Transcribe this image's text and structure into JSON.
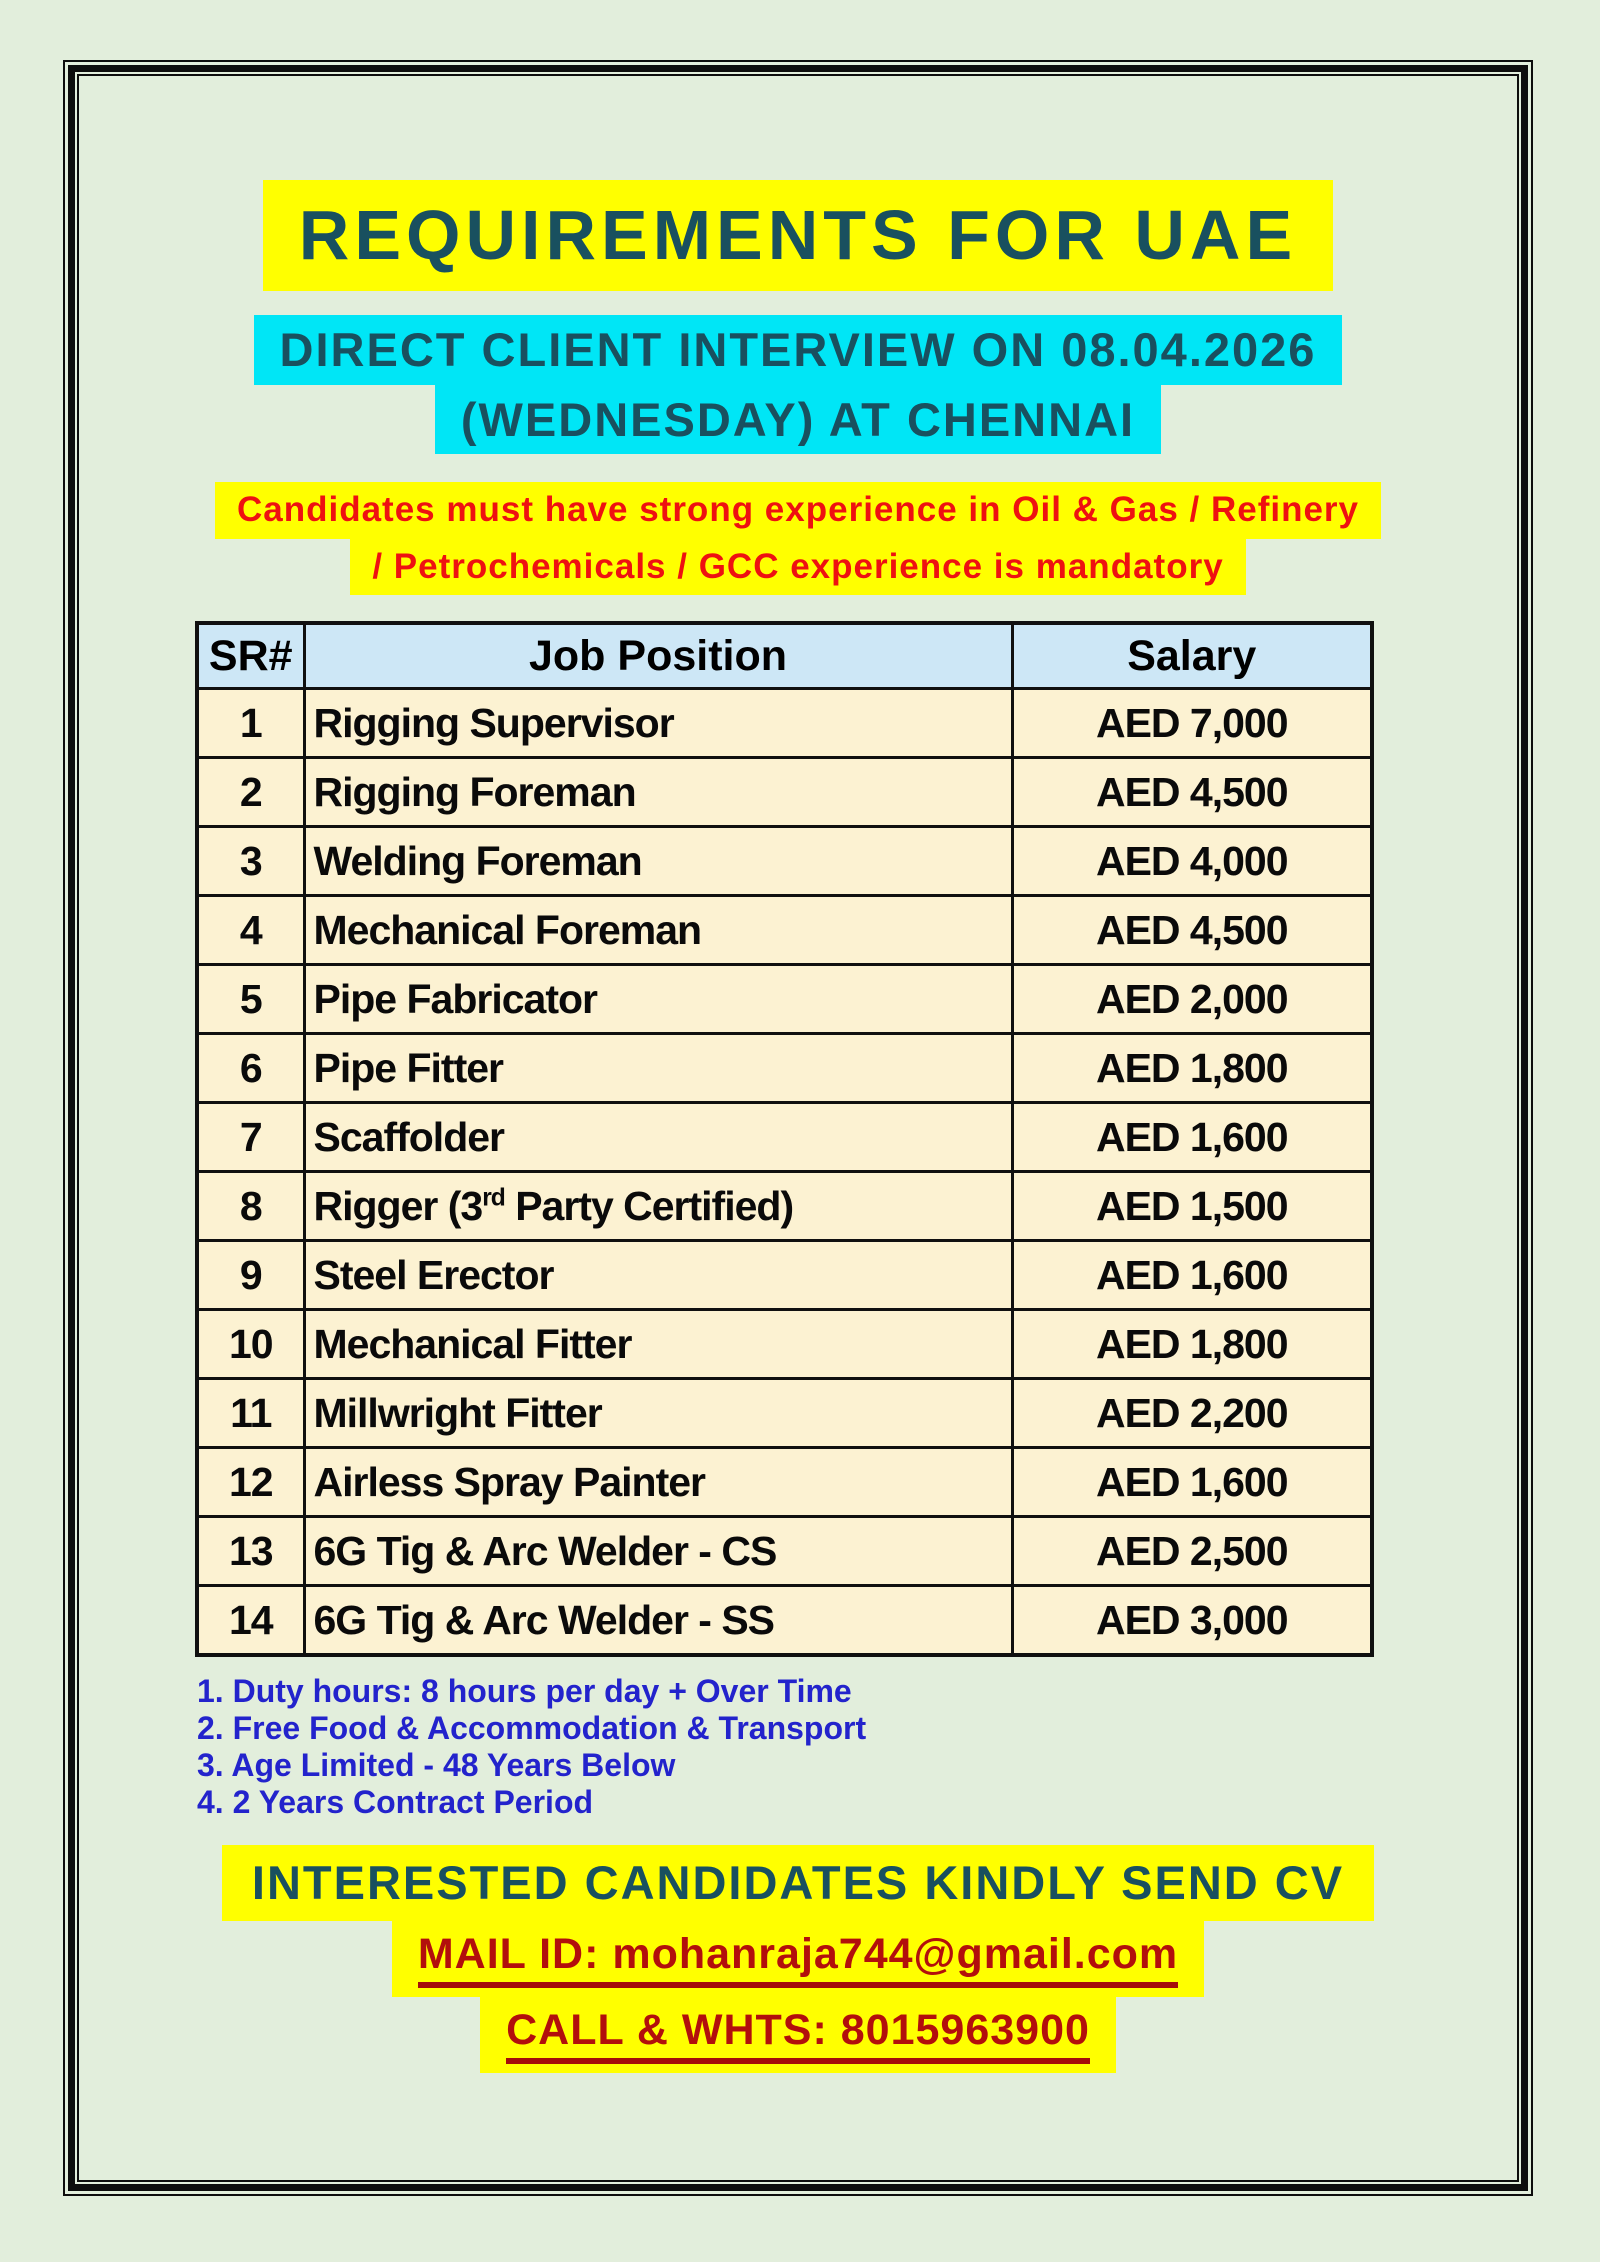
{
  "header": {
    "title": "REQUIREMENTS FOR UAE",
    "subtitle_line1": "DIRECT CLIENT INTERVIEW ON 08.04.2026",
    "subtitle_line2": "(WEDNESDAY) AT CHENNAI",
    "notice_line1": "Candidates must have strong experience in Oil & Gas / Refinery",
    "notice_line2": "/ Petrochemicals / GCC experience is mandatory"
  },
  "table": {
    "headers": {
      "sr": "SR#",
      "position": "Job Position",
      "salary": "Salary"
    },
    "rows": [
      {
        "sr": "1",
        "position": "Rigging Supervisor",
        "salary": "AED 7,000"
      },
      {
        "sr": "2",
        "position": "Rigging Foreman",
        "salary": "AED 4,500"
      },
      {
        "sr": "3",
        "position": "Welding Foreman",
        "salary": "AED 4,000"
      },
      {
        "sr": "4",
        "position": "Mechanical Foreman",
        "salary": "AED 4,500"
      },
      {
        "sr": "5",
        "position": "Pipe Fabricator",
        "salary": "AED 2,000"
      },
      {
        "sr": "6",
        "position": "Pipe Fitter",
        "salary": "AED 1,800"
      },
      {
        "sr": "7",
        "position": "Scaffolder",
        "salary": "AED 1,600"
      },
      {
        "sr": "8",
        "position_pre": "Rigger (3",
        "position_sup": "rd",
        "position_post": " Party Certified)",
        "salary": "AED 1,500"
      },
      {
        "sr": "9",
        "position": "Steel Erector",
        "salary": "AED 1,600"
      },
      {
        "sr": "10",
        "position": "Mechanical Fitter",
        "salary": "AED 1,800"
      },
      {
        "sr": "11",
        "position": "Millwright Fitter",
        "salary": "AED 2,200"
      },
      {
        "sr": "12",
        "position": "Airless Spray Painter",
        "salary": "AED 1,600"
      },
      {
        "sr": "13",
        "position": "6G Tig & Arc Welder - CS",
        "salary": "AED 2,500"
      },
      {
        "sr": "14",
        "position": "6G Tig & Arc Welder - SS",
        "salary": "AED 3,000"
      }
    ]
  },
  "notes": {
    "items": [
      "1. Duty hours: 8 hours per day + Over Time",
      "2. Free Food & Accommodation & Transport",
      "3. Age Limited - 48 Years Below",
      "4. 2 Years Contract Period"
    ]
  },
  "footer": {
    "cv_line": "INTERESTED CANDIDATES KINDLY SEND CV",
    "mail_line": "MAIL ID: mohanraja744@gmail.com",
    "call_line": "CALL & WHTS: 8015963900"
  },
  "colors": {
    "page_background": "#e2eedc",
    "highlight_yellow": "#ffff00",
    "highlight_cyan": "#00e6f6",
    "heading_teal": "#19505f",
    "alert_red": "#ee1111",
    "contact_dark_red": "#b20f0c",
    "notes_blue": "#2323cc",
    "table_header_blue": "#cde7f6",
    "table_row_cream": "#fcf2d2",
    "border_black": "#101010"
  }
}
